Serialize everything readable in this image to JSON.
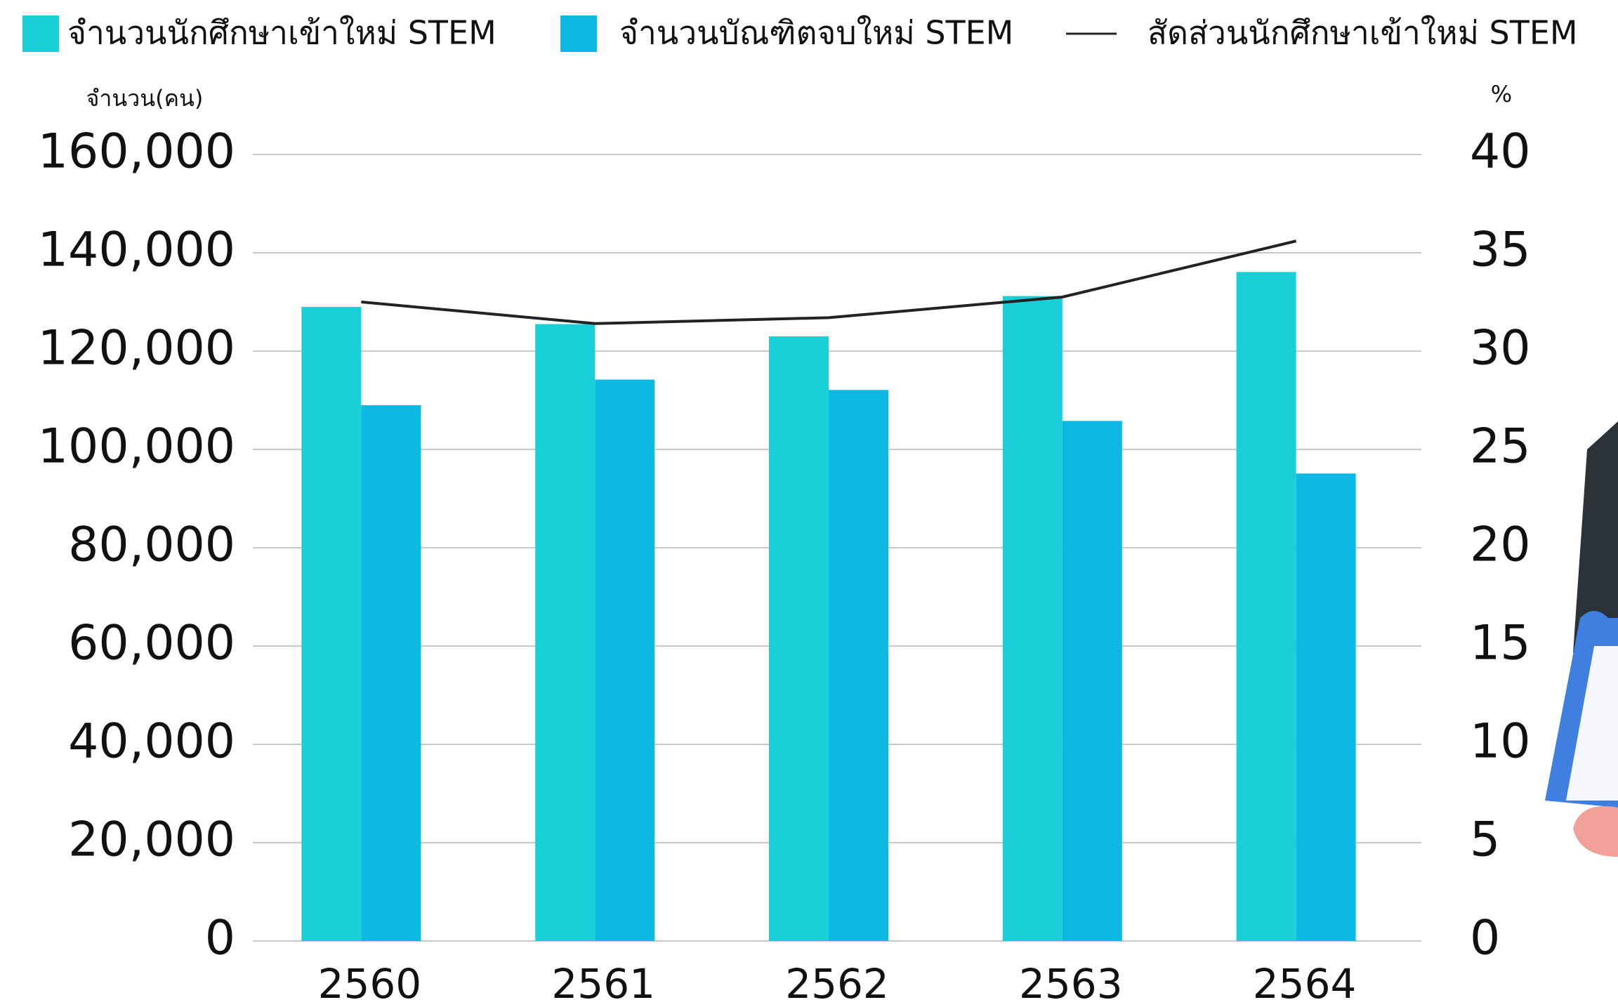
{
  "chart_data": {
    "type": "bar",
    "categories": [
      "2560",
      "2561",
      "2562",
      "2563",
      "2564"
    ],
    "y_label": "จำนวน(คน)",
    "y2_label": "%",
    "series": [
      {
        "name": "จำนวนนักศึกษาเข้าใหม่ STEM",
        "color": "#19d0d8",
        "values": [
          129000,
          125500,
          123000,
          131200,
          136100
        ]
      },
      {
        "name": "จำนวนบัณฑิตจบใหม่ STEM",
        "color": "#0cb9e4",
        "values": [
          109000,
          114200,
          112100,
          105800,
          95100
        ]
      },
      {
        "name": "สัดส่วนนักศึกษาเข้าใหม่ STEM",
        "color": "#222222",
        "type": "line",
        "axis": "y2",
        "values": [
          32.5,
          31.4,
          31.7,
          32.75,
          35.6
        ]
      }
    ],
    "ylim": [
      0,
      160000
    ],
    "yticks": [
      0,
      {
        "value": 20000,
        "label": "20,000"
      },
      {
        "value": 40000,
        "label": "40,000"
      },
      {
        "value": 60000,
        "label": "60,000"
      },
      {
        "value": 80000,
        "label": "80,000"
      },
      {
        "value": 100000,
        "label": "100,000"
      },
      {
        "value": 120000,
        "label": "120,000"
      },
      {
        "value": 140000,
        "label": "140,000"
      },
      {
        "value": 160000,
        "label": "160,000"
      }
    ],
    "y2lim": [
      0,
      40
    ],
    "y2ticks": [
      0,
      5,
      10,
      15,
      20,
      25,
      30,
      35,
      40
    ],
    "grid": true
  }
}
